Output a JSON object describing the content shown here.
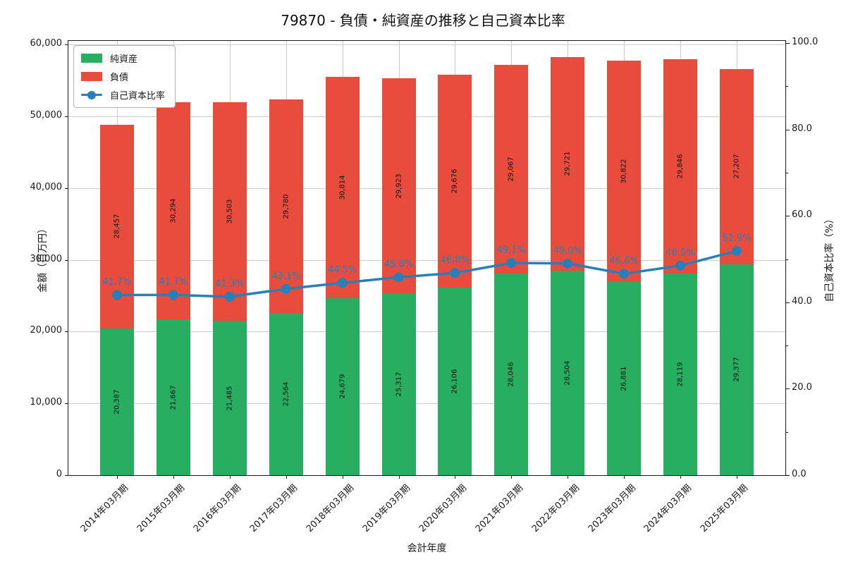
{
  "title": "79870 - 負債・純資産の推移と自己資本比率",
  "legend": {
    "items": [
      {
        "label": "純資産"
      },
      {
        "label": "負債"
      },
      {
        "label": "自己資本比率"
      }
    ]
  },
  "axes": {
    "x_title": "会計年度",
    "y_left_title": "金額（百万円）",
    "y_right_title": "自己資本比率（%）",
    "y_left_tick_labels": [
      "0",
      "10,000",
      "20,000",
      "30,000",
      "40,000",
      "50,000",
      "60,000"
    ],
    "y_right_tick_labels": [
      "0.0",
      "20.0",
      "40.0",
      "60.0",
      "80.0",
      "100.0"
    ]
  },
  "chart_data": {
    "type": "bar",
    "subtype": "stacked-bars-with-line",
    "title": "79870 - 負債・純資産の推移と自己資本比率",
    "xlabel": "会計年度",
    "ylabel_left": "金額（百万円）",
    "ylabel_right": "自己資本比率（%）",
    "categories": [
      "2014年03月期",
      "2015年03月期",
      "2016年03月期",
      "2017年03月期",
      "2018年03月期",
      "2019年03月期",
      "2020年03月期",
      "2021年03月期",
      "2022年03月期",
      "2023年03月期",
      "2024年03月期",
      "2025年03月期"
    ],
    "series": [
      {
        "name": "純資産",
        "type": "bar",
        "stack_order": 0,
        "axis": "left",
        "color": "#27ae60",
        "values": [
          20387,
          21667,
          21485,
          22564,
          24679,
          25317,
          26106,
          28046,
          28504,
          26881,
          28119,
          29377
        ]
      },
      {
        "name": "負債",
        "type": "bar",
        "stack_order": 1,
        "axis": "left",
        "color": "#e74c3c",
        "values": [
          28457,
          30294,
          30503,
          29780,
          30814,
          29923,
          29676,
          29067,
          29721,
          30822,
          29846,
          27207
        ]
      },
      {
        "name": "自己資本比率",
        "type": "line",
        "axis": "right",
        "color": "#2980b9",
        "values": [
          41.7,
          41.7,
          41.3,
          43.1,
          44.5,
          45.8,
          46.8,
          49.1,
          49.0,
          46.6,
          48.5,
          51.9
        ],
        "point_labels": [
          "41.7%",
          "41.7%",
          "41.3%",
          "43.1%",
          "44.5%",
          "45.8%",
          "46.8%",
          "49.1%",
          "49.0%",
          "46.6%",
          "48.5%",
          "51.9%"
        ]
      }
    ],
    "ylim_left": [
      0,
      60000
    ],
    "ylim_right": [
      0,
      100
    ],
    "y_left_tickvals": [
      0,
      10000,
      20000,
      30000,
      40000,
      50000,
      60000
    ],
    "y_right_tickvals": [
      0,
      20,
      40,
      60,
      80,
      100
    ],
    "y_right_minor_tickvals": [
      10,
      30,
      50,
      70,
      90
    ],
    "grid": "horizontal-and-vertical",
    "gridline_color": "#cccccc",
    "legend_position": "upper-left",
    "bar_value_labels_rotation": 90,
    "x_tick_rotation": 45
  }
}
